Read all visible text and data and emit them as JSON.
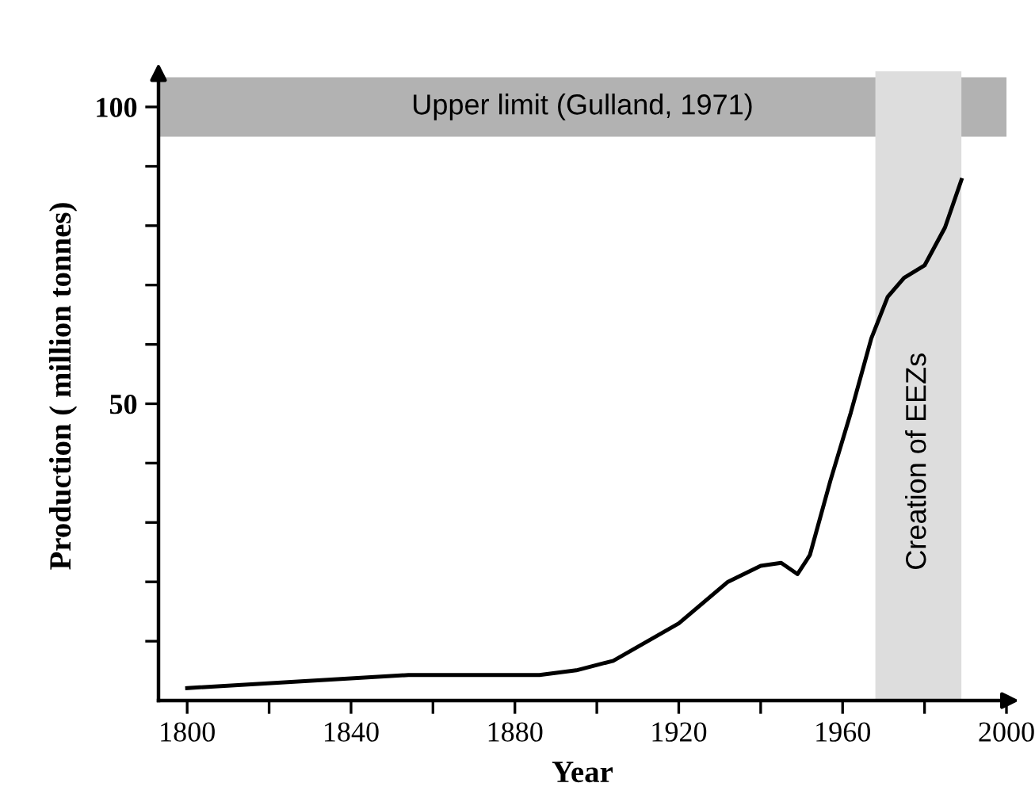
{
  "chart_data": {
    "type": "line",
    "xlabel": "Year",
    "ylabel": "Production ( million tonnes)",
    "x": [
      1800,
      1854,
      1886,
      1895,
      1900,
      1904,
      1920,
      1932,
      1940,
      1945,
      1949,
      1952,
      1957,
      1962,
      1967,
      1971,
      1975,
      1980,
      1985,
      1989
    ],
    "series": [
      {
        "color": "#000000",
        "values": [
          2.1,
          4.3,
          4.3,
          5.1,
          6,
          6.7,
          13,
          20,
          22.7,
          23.2,
          21.3,
          24.5,
          37,
          48.5,
          61,
          68,
          71.2,
          73.3,
          79.7,
          87.7
        ]
      }
    ],
    "xlim": [
      1793,
      2000
    ],
    "ylim": [
      0,
      106
    ],
    "xticks": [
      1800,
      {
        "value": 1820,
        "label": null
      },
      1840,
      {
        "value": 1860,
        "label": null
      },
      1880,
      {
        "value": 1900,
        "label": null
      },
      1920,
      {
        "value": 1940,
        "label": null
      },
      1960,
      {
        "value": 1980,
        "label": null
      },
      2000
    ],
    "yticks": [
      {
        "value": 10,
        "label": null
      },
      {
        "value": 20,
        "label": null
      },
      {
        "value": 30,
        "label": null
      },
      {
        "value": 40,
        "label": null
      },
      50,
      {
        "value": 60,
        "label": null
      },
      {
        "value": 70,
        "label": null
      },
      {
        "value": 80,
        "label": null
      },
      {
        "value": 90,
        "label": null
      },
      100
    ],
    "bands": [
      {
        "axis": "y",
        "from": 95,
        "to": 105,
        "label": "Upper limit (Gulland, 1971)",
        "color": "#b2b2b2"
      },
      {
        "axis": "x",
        "from": 1968,
        "to": 1989,
        "label": "Creation of EEZs",
        "color": "#dddddd"
      }
    ],
    "grid": false,
    "legend": false,
    "marker": "none",
    "line_style": "solid"
  }
}
